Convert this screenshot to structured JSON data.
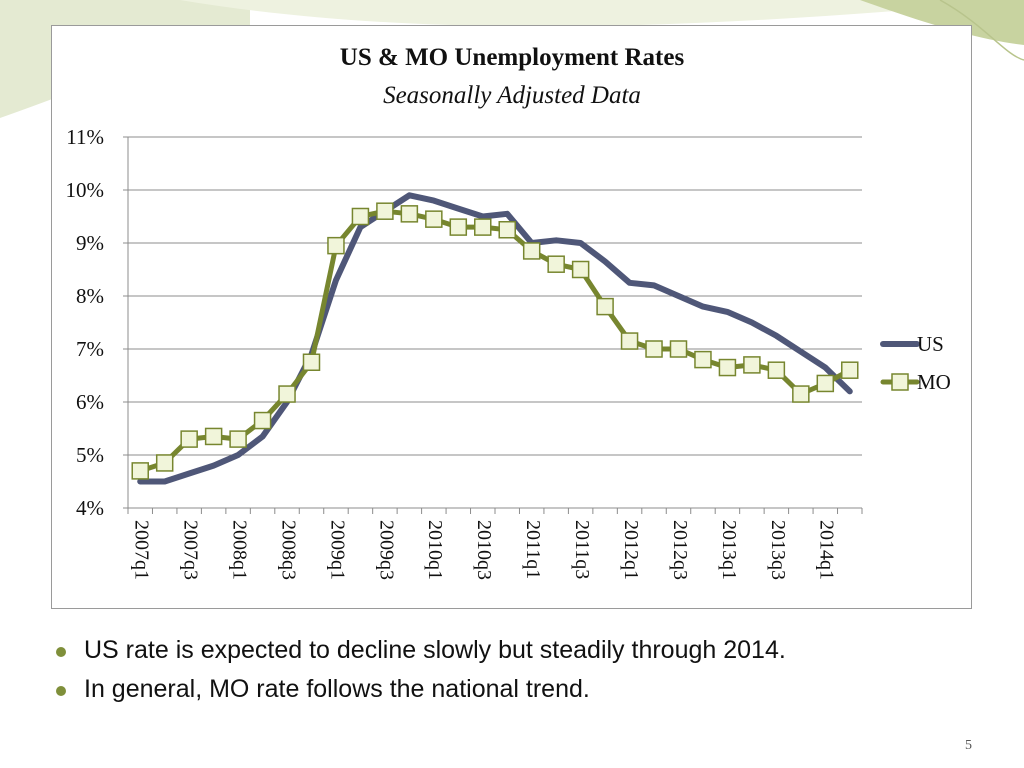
{
  "chart_data": {
    "type": "line",
    "title": "US & MO Unemployment Rates",
    "subtitle": "Seasonally Adjusted Data",
    "xlabel": "",
    "ylabel": "",
    "ylim": [
      4,
      11
    ],
    "yticks": [
      4,
      5,
      6,
      7,
      8,
      9,
      10,
      11
    ],
    "ytick_labels": [
      "4%",
      "5%",
      "6%",
      "7%",
      "8%",
      "9%",
      "10%",
      "11%"
    ],
    "categories": [
      "2007q1",
      "2007q2",
      "2007q3",
      "2007q4",
      "2008q1",
      "2008q2",
      "2008q3",
      "2008q4",
      "2009q1",
      "2009q2",
      "2009q3",
      "2009q4",
      "2010q1",
      "2010q2",
      "2010q3",
      "2010q4",
      "2011q1",
      "2011q2",
      "2011q3",
      "2011q4",
      "2012q1",
      "2012q2",
      "2012q3",
      "2012q4",
      "2013q1",
      "2013q2",
      "2013q3",
      "2013q4",
      "2014q1",
      "2014q2"
    ],
    "xtick_labels": [
      "2007q1",
      "2007q3",
      "2008q1",
      "2008q3",
      "2009q1",
      "2009q3",
      "2010q1",
      "2010q3",
      "2011q1",
      "2011q3",
      "2012q1",
      "2012q3",
      "2013q1",
      "2013q3",
      "2014q1"
    ],
    "grid": true,
    "legend_position": "right",
    "series": [
      {
        "name": "US",
        "color": "#4f5778",
        "marker": "none",
        "values": [
          4.5,
          4.5,
          4.65,
          4.8,
          5.0,
          5.35,
          6.0,
          6.9,
          8.3,
          9.3,
          9.6,
          9.9,
          9.8,
          9.65,
          9.5,
          9.55,
          9.0,
          9.05,
          9.0,
          8.65,
          8.25,
          8.2,
          8.0,
          7.8,
          7.7,
          7.5,
          7.25,
          6.95,
          6.65,
          6.2
        ]
      },
      {
        "name": "MO",
        "color": "#77862f",
        "marker": "square",
        "marker_fill": "#f1f5da",
        "values": [
          4.7,
          4.85,
          5.3,
          5.35,
          5.3,
          5.65,
          6.15,
          6.75,
          8.95,
          9.5,
          9.6,
          9.55,
          9.45,
          9.3,
          9.3,
          9.25,
          8.85,
          8.6,
          8.5,
          7.8,
          7.15,
          7.0,
          7.0,
          6.8,
          6.65,
          6.7,
          6.6,
          6.15,
          6.35,
          6.6
        ]
      }
    ]
  },
  "bullets": [
    "US rate is expected to decline slowly but steadily through 2014.",
    "In general, MO rate follows the national trend."
  ],
  "page_number": "5",
  "colors": {
    "accent": "#7f8f3a",
    "gridline": "#8c8c8c",
    "deco_green": "#c8d3a0"
  }
}
